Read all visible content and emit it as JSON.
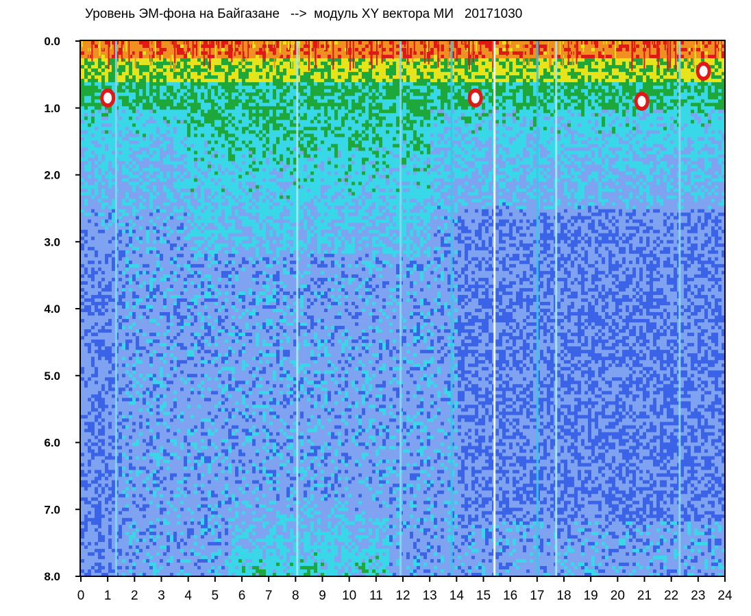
{
  "chart_data": {
    "type": "heatmap",
    "title": "Уровень ЭМ-фона на Байгазане   -->  модуль XY вектора МИ   20171030",
    "xlabel": "",
    "ylabel": "",
    "xlim": [
      0,
      24
    ],
    "ylim": [
      0,
      8
    ],
    "y_inverted": true,
    "x_ticks": [
      "0",
      "1",
      "2",
      "3",
      "4",
      "5",
      "6",
      "7",
      "8",
      "9",
      "10",
      "11",
      "12",
      "13",
      "14",
      "15",
      "16",
      "17",
      "18",
      "19",
      "20",
      "21",
      "22",
      "23",
      "24"
    ],
    "y_ticks": [
      "0.0",
      "1.0",
      "2.0",
      "3.0",
      "4.0",
      "5.0",
      "6.0",
      "7.0",
      "8.0"
    ],
    "grid": false,
    "colormap": [
      "#1e2fd6",
      "#3a63e8",
      "#7fa3f0",
      "#38d8e8",
      "#1fa83a",
      "#e8e41a",
      "#f09020",
      "#e01818",
      "#ffffff"
    ],
    "frame_color": "#000000",
    "bands": [
      {
        "y_from": 0.0,
        "y_to": 0.3,
        "level": "high",
        "note": "yellow-red"
      },
      {
        "y_from": 0.3,
        "y_to": 1.0,
        "level": "mid",
        "note": "green-cyan"
      },
      {
        "y_from": 1.0,
        "y_to": 3.0,
        "level": "low-mid",
        "note": "cyan-blue"
      },
      {
        "y_from": 3.0,
        "y_to": 8.0,
        "level": "low",
        "note": "blue"
      }
    ],
    "vertical_streaks": [
      {
        "x": 1.3,
        "color": "#7fd8f0"
      },
      {
        "x": 8.05,
        "color": "#a8e8f0"
      },
      {
        "x": 11.9,
        "color": "#8ad8f0"
      },
      {
        "x": 13.8,
        "color": "#38c8e8"
      },
      {
        "x": 15.4,
        "color": "#ffffff"
      },
      {
        "x": 17.0,
        "color": "#38c8e8"
      },
      {
        "x": 17.7,
        "color": "#a8e8f0"
      },
      {
        "x": 22.3,
        "color": "#8ad8f0"
      }
    ],
    "hotspots": [
      {
        "x": 1.0,
        "y": 0.85
      },
      {
        "x": 14.7,
        "y": 0.85
      },
      {
        "x": 20.9,
        "y": 0.9
      },
      {
        "x": 23.2,
        "y": 0.45
      }
    ]
  }
}
